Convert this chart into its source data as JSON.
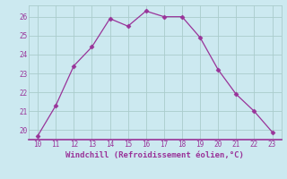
{
  "x": [
    10,
    11,
    12,
    13,
    14,
    15,
    16,
    17,
    18,
    19,
    20,
    21,
    22,
    23
  ],
  "y": [
    19.7,
    21.3,
    23.4,
    24.4,
    25.9,
    25.5,
    26.3,
    26.0,
    26.0,
    24.9,
    23.2,
    21.9,
    21.0,
    19.9
  ],
  "line_color": "#993399",
  "marker": "D",
  "marker_size": 2.5,
  "background_color": "#cce9f0",
  "grid_color": "#aacccc",
  "xlabel": "Windchill (Refroidissement éolien,°C)",
  "xlabel_color": "#993399",
  "tick_color": "#993399",
  "label_color": "#993399",
  "xlim": [
    9.5,
    23.5
  ],
  "ylim": [
    19.5,
    26.6
  ],
  "yticks": [
    20,
    21,
    22,
    23,
    24,
    25,
    26
  ],
  "xticks": [
    10,
    11,
    12,
    13,
    14,
    15,
    16,
    17,
    18,
    19,
    20,
    21,
    22,
    23
  ],
  "spine_color": "#993399"
}
